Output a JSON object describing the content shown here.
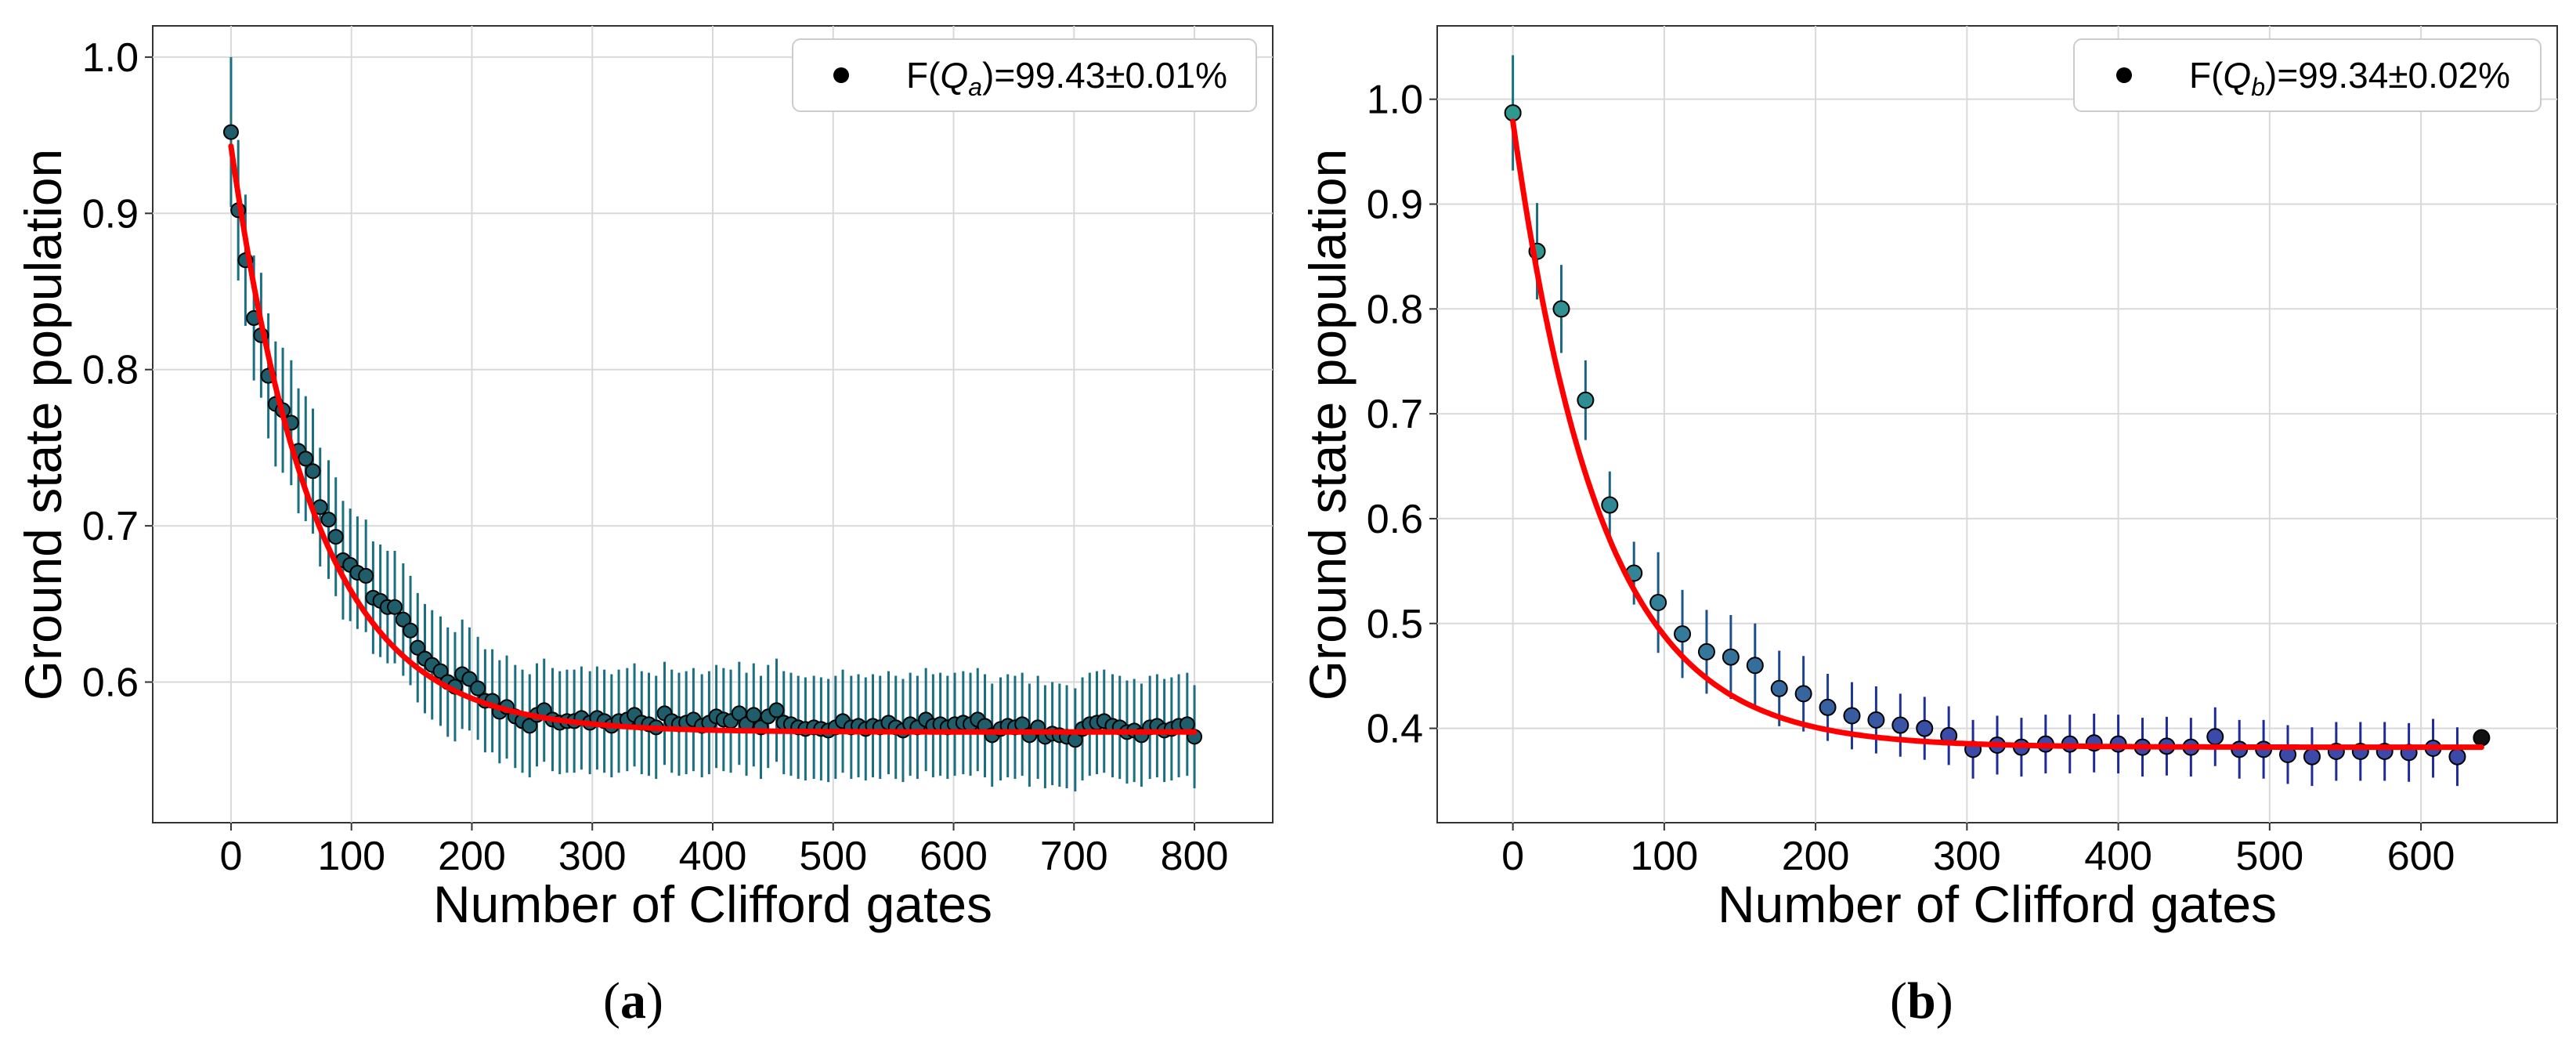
{
  "chart_data": [
    {
      "type": "scatter",
      "panel": "a",
      "caption": "a",
      "xlabel": "Number of Clifford gates",
      "ylabel": "Ground state population",
      "xlim": [
        -65,
        865
      ],
      "ylim": [
        0.51,
        1.02
      ],
      "xticks": [
        0,
        100,
        200,
        300,
        400,
        500,
        600,
        700,
        800
      ],
      "yticks": [
        0.6,
        0.7,
        0.8,
        0.9,
        1.0
      ],
      "ytick_labels": [
        "0.6",
        "0.7",
        "0.8",
        "0.9",
        "1.0"
      ],
      "grid": true,
      "legend": {
        "label": "F(Q_a)=99.43±0.01%",
        "position": "top-right"
      },
      "colors": {
        "marker_fill": "#1f5d6a",
        "marker_edge": "#000000",
        "errorbar": "#1a7080",
        "fit": "#ff0000"
      },
      "fit": {
        "A": 0.375,
        "B": 0.568,
        "tau": 70
      },
      "series": [
        {
          "name": "data",
          "x": [
            0,
            6,
            12,
            19,
            25,
            31,
            37,
            43,
            50,
            56,
            62,
            68,
            74,
            81,
            87,
            93,
            99,
            105,
            112,
            118,
            124,
            130,
            136,
            143,
            149,
            155,
            161,
            167,
            174,
            180,
            186,
            192,
            198,
            205,
            211,
            217,
            223,
            229,
            236,
            242,
            248,
            254,
            260,
            267,
            273,
            279,
            285,
            291,
            298,
            304,
            310,
            316,
            322,
            329,
            335,
            341,
            347,
            353,
            360,
            366,
            372,
            378,
            384,
            391,
            397,
            403,
            409,
            415,
            422,
            428,
            434,
            440,
            446,
            453,
            459,
            465,
            471,
            477,
            484,
            490,
            496,
            502,
            508,
            515,
            521,
            527,
            533,
            539,
            546,
            552,
            558,
            564,
            570,
            577,
            583,
            589,
            595,
            601,
            608,
            614,
            620,
            626,
            632,
            639,
            645,
            651,
            657,
            663,
            670,
            676,
            682,
            688,
            694,
            701,
            707,
            713,
            719,
            725,
            732,
            738,
            744,
            750,
            756,
            763,
            769,
            775,
            781,
            787,
            794,
            800
          ],
          "y": [
            0.952,
            0.902,
            0.87,
            0.833,
            0.822,
            0.796,
            0.778,
            0.774,
            0.766,
            0.748,
            0.743,
            0.735,
            0.712,
            0.704,
            0.693,
            0.678,
            0.675,
            0.67,
            0.668,
            0.654,
            0.652,
            0.648,
            0.648,
            0.64,
            0.633,
            0.622,
            0.615,
            0.611,
            0.607,
            0.6,
            0.597,
            0.605,
            0.602,
            0.596,
            0.588,
            0.588,
            0.581,
            0.584,
            0.578,
            0.575,
            0.572,
            0.579,
            0.582,
            0.576,
            0.574,
            0.575,
            0.575,
            0.577,
            0.574,
            0.577,
            0.575,
            0.572,
            0.575,
            0.576,
            0.579,
            0.574,
            0.573,
            0.571,
            0.58,
            0.575,
            0.573,
            0.574,
            0.576,
            0.572,
            0.574,
            0.578,
            0.576,
            0.575,
            0.58,
            0.573,
            0.579,
            0.571,
            0.578,
            0.582,
            0.574,
            0.573,
            0.571,
            0.57,
            0.571,
            0.57,
            0.569,
            0.571,
            0.575,
            0.571,
            0.572,
            0.57,
            0.572,
            0.571,
            0.574,
            0.571,
            0.569,
            0.573,
            0.571,
            0.576,
            0.572,
            0.573,
            0.571,
            0.573,
            0.574,
            0.573,
            0.576,
            0.572,
            0.566,
            0.57,
            0.572,
            0.571,
            0.573,
            0.566,
            0.571,
            0.565,
            0.567,
            0.566,
            0.565,
            0.563,
            0.57,
            0.573,
            0.574,
            0.575,
            0.572,
            0.571,
            0.568,
            0.569,
            0.566,
            0.571,
            0.572,
            0.569,
            0.57,
            0.572,
            0.573,
            0.565
          ],
          "yerr": [
            0.048,
            0.045,
            0.042,
            0.04,
            0.04,
            0.04,
            0.04,
            0.04,
            0.04,
            0.04,
            0.04,
            0.04,
            0.038,
            0.038,
            0.038,
            0.038,
            0.036,
            0.036,
            0.036,
            0.036,
            0.036,
            0.036,
            0.036,
            0.036,
            0.035,
            0.035,
            0.035,
            0.035,
            0.035,
            0.035,
            0.035,
            0.035,
            0.033,
            0.033,
            0.033,
            0.033,
            0.033,
            0.033,
            0.033,
            0.033,
            0.033,
            0.033,
            0.033,
            0.033,
            0.033,
            0.033,
            0.033,
            0.033,
            0.033,
            0.033,
            0.033,
            0.033,
            0.033,
            0.033,
            0.033,
            0.033,
            0.033,
            0.033,
            0.033,
            0.033,
            0.033,
            0.033,
            0.033,
            0.033,
            0.033,
            0.033,
            0.033,
            0.033,
            0.033,
            0.033,
            0.033,
            0.033,
            0.033,
            0.033,
            0.033,
            0.033,
            0.033,
            0.033,
            0.033,
            0.033,
            0.033,
            0.033,
            0.033,
            0.033,
            0.033,
            0.033,
            0.033,
            0.033,
            0.033,
            0.033,
            0.033,
            0.033,
            0.033,
            0.033,
            0.033,
            0.033,
            0.033,
            0.033,
            0.033,
            0.033,
            0.033,
            0.033,
            0.033,
            0.033,
            0.033,
            0.033,
            0.033,
            0.033,
            0.033,
            0.033,
            0.033,
            0.033,
            0.033,
            0.033,
            0.033,
            0.033,
            0.033,
            0.033,
            0.033,
            0.033,
            0.033,
            0.033,
            0.033,
            0.033,
            0.033,
            0.033,
            0.033,
            0.033,
            0.033,
            0.033
          ]
        }
      ]
    },
    {
      "type": "scatter",
      "panel": "b",
      "caption": "b",
      "xlabel": "Number of Clifford gates",
      "ylabel": "Ground state population",
      "xlim": [
        -50,
        690
      ],
      "ylim": [
        0.31,
        1.07
      ],
      "xticks": [
        0,
        100,
        200,
        300,
        400,
        500,
        600
      ],
      "yticks": [
        0.4,
        0.5,
        0.6,
        0.7,
        0.8,
        0.9,
        1.0
      ],
      "ytick_labels": [
        "0.4",
        "0.5",
        "0.6",
        "0.7",
        "0.8",
        "0.9",
        "1.0"
      ],
      "grid": true,
      "legend": {
        "label": "F(Q_b)=99.34±0.02%",
        "position": "top-right"
      },
      "colors": {
        "marker_fill_start": "#2e9a8f",
        "marker_fill_end": "#3b4aa8",
        "marker_edge": "#000000",
        "errorbar_start": "#1a7080",
        "errorbar_end": "#1e2a9a",
        "fit": "#ff0000"
      },
      "fit": {
        "A": 0.597,
        "B": 0.382,
        "tau": 58
      },
      "series": [
        {
          "name": "data",
          "x": [
            0,
            16,
            32,
            48,
            64,
            80,
            96,
            112,
            128,
            144,
            160,
            176,
            192,
            208,
            224,
            240,
            256,
            272,
            288,
            304,
            320,
            336,
            352,
            368,
            384,
            400,
            416,
            432,
            448,
            464,
            480,
            496,
            512,
            528,
            544,
            560,
            576,
            592,
            608,
            624,
            640
          ],
          "y": [
            0.987,
            0.855,
            0.8,
            0.713,
            0.613,
            0.548,
            0.52,
            0.49,
            0.473,
            0.468,
            0.46,
            0.438,
            0.433,
            0.42,
            0.412,
            0.408,
            0.403,
            0.4,
            0.393,
            0.38,
            0.384,
            0.382,
            0.385,
            0.385,
            0.386,
            0.385,
            0.382,
            0.383,
            0.382,
            0.392,
            0.38,
            0.38,
            0.375,
            0.373,
            0.378,
            0.378,
            0.378,
            0.377,
            0.381,
            0.373,
            0.391
          ],
          "yerr": [
            0.055,
            0.046,
            0.042,
            0.038,
            0.032,
            0.03,
            0.048,
            0.042,
            0.04,
            0.04,
            0.04,
            0.036,
            0.036,
            0.032,
            0.032,
            0.032,
            0.03,
            0.03,
            0.028,
            0.028,
            0.028,
            0.028,
            0.028,
            0.028,
            0.028,
            0.028,
            0.028,
            0.028,
            0.028,
            0.028,
            0.028,
            0.028,
            0.028,
            0.028,
            0.028,
            0.028,
            0.028,
            0.028,
            0.028,
            0.028,
            0.0
          ]
        }
      ]
    }
  ]
}
